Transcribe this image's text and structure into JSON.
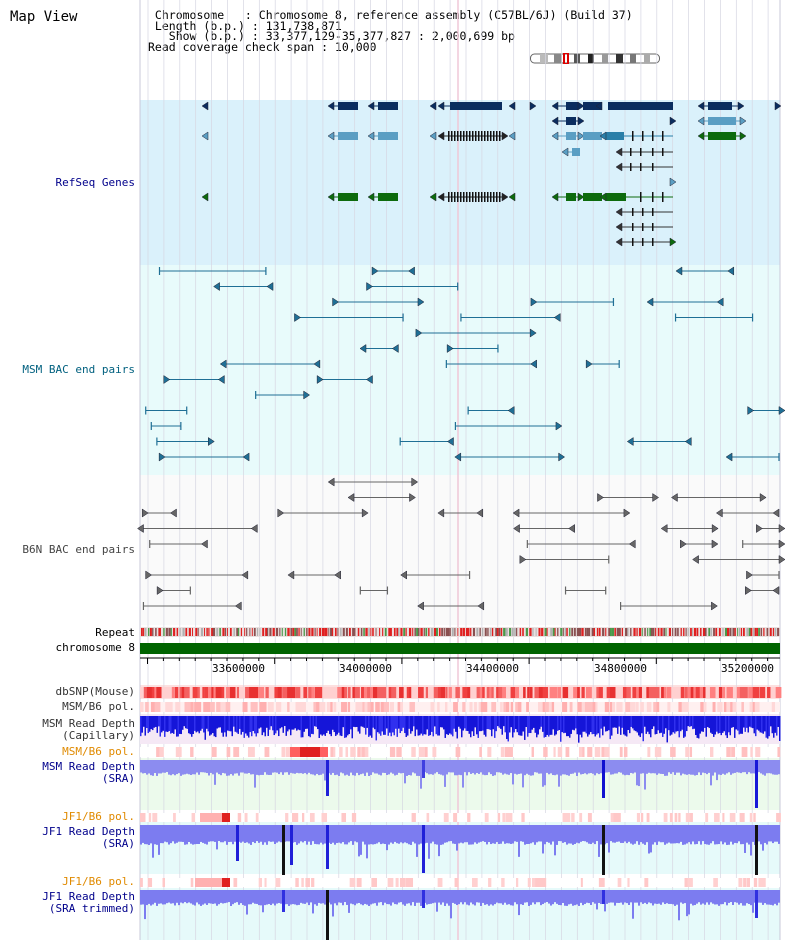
{
  "page": {
    "title": "Map View"
  },
  "info": {
    "line1": " Chromosome   : Chromosome 8, reference assembly (C57BL/6J) (Build 37)",
    "line2": " Length (b.p.) : 131,738,871",
    "line3": "   Show (b.p.) : 33,377,129-35,377,827 : 2,000,699 bp",
    "line4": "Read coverage check span : 10,000"
  },
  "tracks": {
    "refseq": "RefSeq Genes",
    "msm_bac": "MSM BAC end pairs",
    "b6n_bac": "B6N BAC end pairs",
    "repeat": "Repeat",
    "chromosome": "chromosome 8",
    "dbsnp": "dbSNP(Mouse)",
    "msm_b6_pol_1": "MSM/B6 pol.",
    "msm_depth_cap_1": "MSM Read Depth",
    "msm_depth_cap_2": "(Capillary)",
    "msm_b6_pol_2": "MSM/B6 pol.",
    "msm_depth_sra_1": "MSM Read Depth",
    "msm_depth_sra_2": "(SRA)",
    "jf1_b6_pol_1": "JF1/B6 pol.",
    "jf1_depth_sra_1": "JF1 Read Depth",
    "jf1_depth_sra_2": "(SRA)",
    "jf1_b6_pol_2": "JF1/B6 pol.",
    "jf1_depth_trim_1": "JF1 Read Depth",
    "jf1_depth_trim_2": "(SRA trimmed)"
  },
  "axis": {
    "ticks": [
      "33600000",
      "34000000",
      "34400000",
      "34800000",
      "35200000"
    ]
  },
  "colors": {
    "refseq_bg": "#daf1fb",
    "bac_bg": "#e8fbfb",
    "navy": "#0b2d5f",
    "teal": "#2a7fa8",
    "lightblue": "#5a9ec3",
    "green": "#0d6b0d",
    "msm_label": "#00607f",
    "b6n_label": "#444444",
    "refseq_label": "#00008b",
    "orange_label": "#e08a00",
    "chrom_bar": "#006400"
  }
}
